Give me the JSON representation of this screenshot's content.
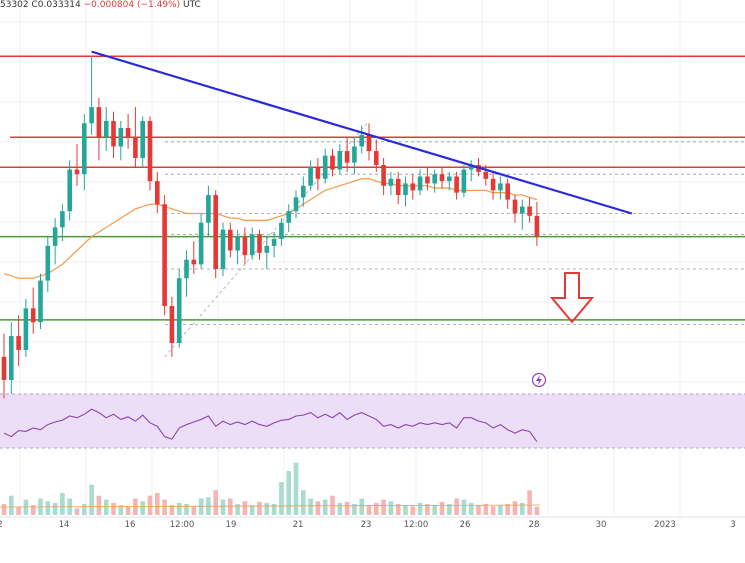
{
  "header": {
    "symbol_fragment": "UTC",
    "price_fragment": "53302",
    "close_label": "C0.033314",
    "change": "−0.000804 (−1.49%)"
  },
  "colors": {
    "up_candle": "#26a69a",
    "down_candle": "#e53935",
    "trendline": "#2a2ad8",
    "resistance": "#e53935",
    "support": "#4a9a3a",
    "moving_average": "#f0a050",
    "rsi": "#8e44ad",
    "rsi_band": "#e8d8f5",
    "arrow": "#e53935"
  },
  "icons": [
    "lightning-icon",
    "down-arrow-icon"
  ],
  "chart_data": {
    "type": "candlestick",
    "x_ticks": [
      "2",
      "14",
      "16",
      "12:00",
      "19",
      "21",
      "23",
      "12:00",
      "26",
      "28",
      "30",
      "2023",
      "3"
    ],
    "ohlc": [
      [
        0.03,
        0.031,
        0.0282,
        0.029
      ],
      [
        0.029,
        0.0315,
        0.0284,
        0.0309
      ],
      [
        0.0309,
        0.0318,
        0.0296,
        0.0303
      ],
      [
        0.0303,
        0.0325,
        0.03,
        0.0321
      ],
      [
        0.0321,
        0.033,
        0.031,
        0.0315
      ],
      [
        0.0315,
        0.0336,
        0.0312,
        0.0333
      ],
      [
        0.0333,
        0.0352,
        0.0328,
        0.0348
      ],
      [
        0.0348,
        0.036,
        0.034,
        0.0356
      ],
      [
        0.0356,
        0.0366,
        0.035,
        0.0363
      ],
      [
        0.0363,
        0.0385,
        0.0359,
        0.0381
      ],
      [
        0.0381,
        0.0392,
        0.0374,
        0.0379
      ],
      [
        0.0379,
        0.0405,
        0.0372,
        0.0401
      ],
      [
        0.0401,
        0.043,
        0.0396,
        0.0408
      ],
      [
        0.0408,
        0.0412,
        0.0385,
        0.0395
      ],
      [
        0.0395,
        0.0408,
        0.0389,
        0.0402
      ],
      [
        0.0402,
        0.0406,
        0.0386,
        0.0391
      ],
      [
        0.0391,
        0.0402,
        0.0385,
        0.0399
      ],
      [
        0.0399,
        0.0405,
        0.039,
        0.0395
      ],
      [
        0.0395,
        0.0408,
        0.0382,
        0.0386
      ],
      [
        0.0386,
        0.0404,
        0.0382,
        0.0402
      ],
      [
        0.0402,
        0.0404,
        0.0372,
        0.0376
      ],
      [
        0.0376,
        0.038,
        0.0362,
        0.0366
      ],
      [
        0.0366,
        0.037,
        0.0318,
        0.0322
      ],
      [
        0.0322,
        0.0326,
        0.03,
        0.0306
      ],
      [
        0.0306,
        0.0338,
        0.0304,
        0.0334
      ],
      [
        0.0334,
        0.0346,
        0.0326,
        0.0342
      ],
      [
        0.0342,
        0.035,
        0.0336,
        0.034
      ],
      [
        0.034,
        0.0362,
        0.0338,
        0.0358
      ],
      [
        0.0358,
        0.0374,
        0.0352,
        0.037
      ],
      [
        0.037,
        0.0372,
        0.0334,
        0.0338
      ],
      [
        0.0338,
        0.0358,
        0.0335,
        0.0355
      ],
      [
        0.0355,
        0.0358,
        0.0343,
        0.0346
      ],
      [
        0.0346,
        0.0355,
        0.034,
        0.0352
      ],
      [
        0.0352,
        0.0356,
        0.034,
        0.0344
      ],
      [
        0.0344,
        0.0356,
        0.0342,
        0.0353
      ],
      [
        0.0353,
        0.0355,
        0.0342,
        0.0345
      ],
      [
        0.0345,
        0.0352,
        0.0338,
        0.0348
      ],
      [
        0.0348,
        0.0354,
        0.0343,
        0.0351
      ],
      [
        0.0351,
        0.036,
        0.0348,
        0.0358
      ],
      [
        0.0358,
        0.0366,
        0.0354,
        0.0363
      ],
      [
        0.0363,
        0.0372,
        0.036,
        0.0369
      ],
      [
        0.0369,
        0.0378,
        0.0365,
        0.0374
      ],
      [
        0.0374,
        0.0385,
        0.0372,
        0.0382
      ],
      [
        0.0382,
        0.0386,
        0.0372,
        0.0377
      ],
      [
        0.0377,
        0.039,
        0.0375,
        0.0387
      ],
      [
        0.0387,
        0.039,
        0.0378,
        0.0381
      ],
      [
        0.0381,
        0.0392,
        0.0379,
        0.0389
      ],
      [
        0.0389,
        0.0395,
        0.038,
        0.0384
      ],
      [
        0.0384,
        0.0395,
        0.0379,
        0.0391
      ],
      [
        0.0391,
        0.04,
        0.0388,
        0.0396
      ],
      [
        0.0396,
        0.0401,
        0.0385,
        0.0389
      ],
      [
        0.0389,
        0.0394,
        0.038,
        0.0383
      ],
      [
        0.0383,
        0.0386,
        0.037,
        0.0374
      ],
      [
        0.0374,
        0.038,
        0.037,
        0.0377
      ],
      [
        0.0377,
        0.038,
        0.0366,
        0.037
      ],
      [
        0.037,
        0.0378,
        0.0365,
        0.0375
      ],
      [
        0.0375,
        0.0379,
        0.0368,
        0.0372
      ],
      [
        0.0372,
        0.0381,
        0.037,
        0.0378
      ],
      [
        0.0378,
        0.0382,
        0.0372,
        0.0375
      ],
      [
        0.0375,
        0.0381,
        0.0371,
        0.0379
      ],
      [
        0.0379,
        0.0382,
        0.0373,
        0.0376
      ],
      [
        0.0376,
        0.038,
        0.0372,
        0.0378
      ],
      [
        0.0378,
        0.038,
        0.0368,
        0.0371
      ],
      [
        0.0371,
        0.0383,
        0.0369,
        0.0381
      ],
      [
        0.0381,
        0.0385,
        0.0376,
        0.0383
      ],
      [
        0.0383,
        0.0386,
        0.0378,
        0.038
      ],
      [
        0.038,
        0.0383,
        0.0374,
        0.0377
      ],
      [
        0.0377,
        0.038,
        0.0368,
        0.0372
      ],
      [
        0.0372,
        0.0378,
        0.0368,
        0.0375
      ],
      [
        0.0375,
        0.0377,
        0.0364,
        0.0368
      ],
      [
        0.0368,
        0.037,
        0.0358,
        0.0362
      ],
      [
        0.0362,
        0.0368,
        0.0355,
        0.0365
      ],
      [
        0.0365,
        0.0369,
        0.0358,
        0.0361
      ],
      [
        0.0361,
        0.0367,
        0.0348,
        0.0352
      ]
    ],
    "moving_average": [
      0.0336,
      0.0335,
      0.0334,
      0.0334,
      0.0334,
      0.0335,
      0.0336,
      0.0338,
      0.034,
      0.0343,
      0.0346,
      0.0349,
      0.0352,
      0.0354,
      0.0356,
      0.0358,
      0.036,
      0.0362,
      0.0364,
      0.0365,
      0.0366,
      0.0366,
      0.0365,
      0.0364,
      0.0363,
      0.0362,
      0.0362,
      0.0362,
      0.0362,
      0.0362,
      0.0361,
      0.036,
      0.036,
      0.0359,
      0.0359,
      0.0359,
      0.0359,
      0.036,
      0.0361,
      0.0362,
      0.0364,
      0.0366,
      0.0368,
      0.037,
      0.0372,
      0.0373,
      0.0374,
      0.0375,
      0.0376,
      0.0377,
      0.0377,
      0.0376,
      0.0375,
      0.0375,
      0.0374,
      0.0374,
      0.0374,
      0.0374,
      0.0374,
      0.0373,
      0.0373,
      0.0373,
      0.0372,
      0.0372,
      0.0372,
      0.0372,
      0.0372,
      0.0371,
      0.0371,
      0.0371,
      0.037,
      0.037,
      0.0369,
      0.0368
    ],
    "levels": {
      "resistance": [
        0.043,
        0.0395,
        0.0382
      ],
      "support": [
        0.0352,
        0.0316
      ],
      "dashed": [
        0.0393,
        0.0379,
        0.0362,
        0.0353,
        0.0338,
        0.0314
      ]
    },
    "trendline": {
      "from": [
        12,
        0.0432
      ],
      "to": [
        86,
        0.0362
      ]
    },
    "rsi": [
      42,
      38,
      45,
      44,
      48,
      46,
      52,
      55,
      57,
      62,
      60,
      64,
      70,
      66,
      60,
      64,
      58,
      61,
      56,
      63,
      54,
      50,
      38,
      35,
      48,
      52,
      55,
      58,
      62,
      50,
      56,
      52,
      55,
      52,
      56,
      52,
      50,
      54,
      57,
      58,
      62,
      63,
      66,
      60,
      64,
      60,
      66,
      58,
      63,
      66,
      62,
      58,
      50,
      52,
      48,
      52,
      50,
      54,
      52,
      54,
      52,
      54,
      48,
      60,
      60,
      56,
      54,
      48,
      52,
      46,
      42,
      46,
      44,
      32
    ],
    "volume": [
      20,
      35,
      15,
      28,
      18,
      30,
      25,
      22,
      40,
      30,
      12,
      20,
      55,
      35,
      28,
      22,
      18,
      16,
      30,
      25,
      35,
      40,
      28,
      18,
      22,
      20,
      15,
      30,
      32,
      45,
      28,
      30,
      20,
      25,
      18,
      24,
      22,
      20,
      60,
      80,
      95,
      45,
      30,
      25,
      28,
      35,
      22,
      24,
      20,
      30,
      18,
      22,
      28,
      25,
      20,
      18,
      16,
      22,
      20,
      18,
      24,
      20,
      30,
      28,
      22,
      18,
      20,
      16,
      18,
      20,
      25,
      22,
      45,
      15
    ]
  }
}
